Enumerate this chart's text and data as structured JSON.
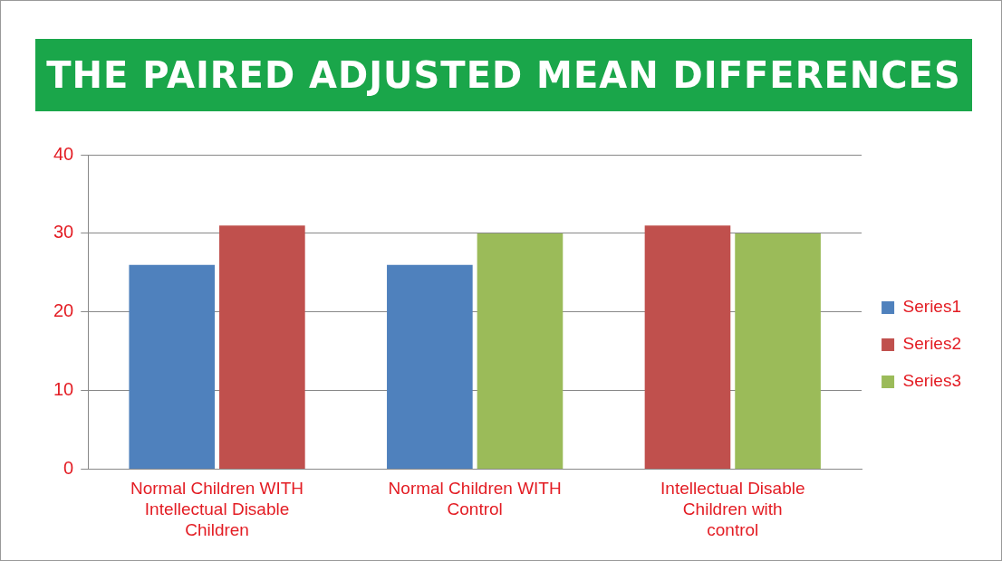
{
  "chart_data": {
    "type": "bar",
    "title": "THE PAIRED ADJUSTED MEAN DIFFERENCES",
    "categories": [
      "Normal Children WITH Intellectual Disable Children",
      "Normal Children WITH Control",
      "Intellectual Disable Children with control"
    ],
    "series": [
      {
        "name": "Series1",
        "color": "#4f81bd",
        "values": [
          26,
          26,
          null
        ]
      },
      {
        "name": "Series2",
        "color": "#c0504d",
        "values": [
          31,
          null,
          31
        ]
      },
      {
        "name": "Series3",
        "color": "#9bbb59",
        "values": [
          null,
          30,
          30
        ]
      }
    ],
    "ylim": [
      0,
      40
    ],
    "yticks": [
      0,
      10,
      20,
      30,
      40
    ],
    "grid": "y",
    "legend": "right"
  }
}
